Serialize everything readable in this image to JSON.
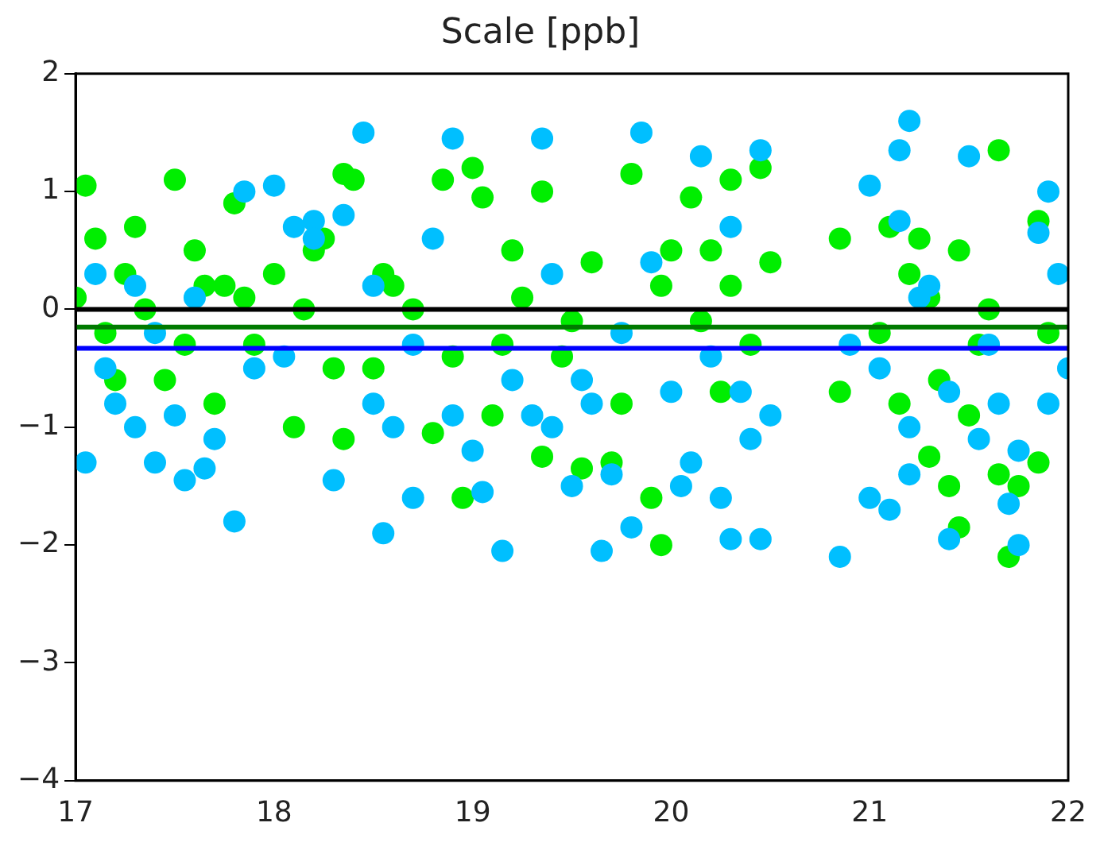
{
  "chart_data": {
    "type": "scatter",
    "title": "Scale [ppb]",
    "xlim": [
      17,
      22
    ],
    "xticks": [
      17,
      18,
      19,
      20,
      21,
      22
    ],
    "ylim": [
      -4,
      2
    ],
    "yticks": [
      -4,
      -3,
      -2,
      -1,
      0,
      1,
      2
    ],
    "grid": false,
    "legend": false,
    "marker": "circle",
    "series": [
      {
        "color": "#00bfff",
        "x": [
          18.45,
          18.9,
          19.35,
          19.85,
          20.15,
          20.45,
          21.2,
          21.15,
          21.0,
          21.5,
          21.9,
          18.0,
          17.85,
          18.2,
          17.05,
          17.8,
          18.55,
          19.15,
          19.65,
          19.8,
          20.1,
          20.3,
          20.45,
          20.85,
          21.0,
          21.1,
          21.2,
          21.4,
          21.75,
          21.7,
          21.9,
          17.4,
          17.55,
          17.65,
          18.3,
          18.7,
          19.05,
          19.0,
          19.4,
          19.5,
          20.05,
          20.25,
          17.3,
          17.2,
          18.05,
          18.5,
          19.6,
          20.5,
          21.05,
          21.6,
          21.85,
          21.95,
          21.3,
          21.15,
          20.3,
          19.9,
          19.4,
          18.8,
          18.5,
          18.2,
          17.6,
          17.3,
          17.1,
          17.4,
          17.9,
          18.7,
          19.2,
          19.75,
          20.2,
          20.9,
          21.4,
          21.75,
          22.0,
          17.5,
          18.1,
          18.35,
          18.6,
          19.3,
          19.55,
          20.0,
          20.4,
          21.25,
          21.55,
          17.15,
          17.7,
          18.9,
          19.7,
          20.35,
          21.2,
          21.65
        ],
        "values": [
          1.5,
          1.45,
          1.45,
          1.5,
          1.3,
          1.35,
          1.6,
          1.35,
          1.05,
          1.3,
          1.0,
          1.05,
          1.0,
          0.75,
          -1.3,
          -1.8,
          -1.9,
          -2.05,
          -2.05,
          -1.85,
          -1.3,
          -1.95,
          -1.95,
          -2.1,
          -1.6,
          -1.7,
          -1.4,
          -1.95,
          -2.0,
          -1.65,
          -0.8,
          -1.3,
          -1.45,
          -1.35,
          -1.45,
          -1.6,
          -1.55,
          -1.2,
          -1.0,
          -1.5,
          -1.5,
          -1.6,
          -1.0,
          -0.8,
          -0.4,
          -0.8,
          -0.8,
          -0.9,
          -0.5,
          -0.3,
          0.65,
          0.3,
          0.2,
          0.75,
          0.7,
          0.4,
          0.3,
          0.6,
          0.2,
          0.6,
          0.1,
          0.2,
          0.3,
          -0.2,
          -0.5,
          -0.3,
          -0.6,
          -0.2,
          -0.4,
          -0.3,
          -0.7,
          -1.2,
          -0.5,
          -0.9,
          0.7,
          0.8,
          -1.0,
          -0.9,
          -0.6,
          -0.7,
          -1.1,
          0.1,
          -1.1,
          -0.5,
          -1.1,
          -0.9,
          -1.4,
          -0.7,
          -1.0,
          -0.8
        ]
      },
      {
        "color": "#00ee00",
        "x": [
          17.05,
          17.5,
          17.8,
          18.35,
          18.4,
          18.85,
          19.0,
          19.05,
          19.35,
          19.8,
          20.1,
          20.3,
          20.45,
          20.85,
          21.25,
          21.45,
          21.65,
          21.85,
          17.1,
          17.3,
          17.6,
          18.0,
          18.25,
          18.6,
          19.2,
          19.6,
          20.0,
          20.3,
          21.1,
          21.3,
          17.2,
          17.45,
          17.7,
          18.1,
          18.35,
          18.8,
          19.1,
          19.35,
          19.55,
          19.7,
          19.9,
          19.95,
          20.25,
          20.85,
          21.15,
          21.3,
          21.4,
          21.45,
          21.65,
          21.7,
          21.85,
          21.75,
          18.95,
          19.15,
          17.9,
          18.5,
          20.4,
          21.5,
          21.9,
          17.0,
          17.35,
          17.75,
          18.15,
          18.7,
          19.5,
          20.15,
          17.25,
          17.55,
          17.85,
          18.3,
          18.55,
          19.25,
          19.45,
          19.95,
          20.5,
          21.2,
          21.35,
          21.6,
          17.15,
          17.65,
          18.2,
          18.9,
          19.75,
          20.2,
          21.05,
          21.55
        ],
        "values": [
          1.05,
          1.1,
          0.9,
          1.15,
          1.1,
          1.1,
          1.2,
          0.95,
          1.0,
          1.15,
          0.95,
          1.1,
          1.2,
          0.6,
          0.6,
          0.5,
          1.35,
          0.75,
          0.6,
          0.7,
          0.5,
          0.3,
          0.6,
          0.2,
          0.5,
          0.4,
          0.5,
          0.2,
          0.7,
          0.1,
          -0.6,
          -0.6,
          -0.8,
          -1.0,
          -1.1,
          -1.05,
          -0.9,
          -1.25,
          -1.35,
          -1.3,
          -1.6,
          -2.0,
          -0.7,
          -0.7,
          -0.8,
          -1.25,
          -1.5,
          -1.85,
          -1.4,
          -2.1,
          -1.3,
          -1.5,
          -1.6,
          -0.3,
          -0.3,
          -0.5,
          -0.3,
          -0.9,
          -0.2,
          0.1,
          0.0,
          0.2,
          0.0,
          0.0,
          -0.1,
          -0.1,
          0.3,
          -0.3,
          0.1,
          -0.5,
          0.3,
          0.1,
          -0.4,
          0.2,
          0.4,
          0.3,
          -0.6,
          0.0,
          -0.2,
          0.2,
          0.5,
          -0.4,
          -0.8,
          0.5,
          -0.2,
          -0.3
        ]
      }
    ],
    "ref_lines": [
      {
        "axis": "y",
        "value": 0,
        "color": "#000000"
      },
      {
        "axis": "y",
        "value": -0.15,
        "color": "#007a00"
      },
      {
        "axis": "y",
        "value": -0.33,
        "color": "#0000ff"
      }
    ]
  }
}
